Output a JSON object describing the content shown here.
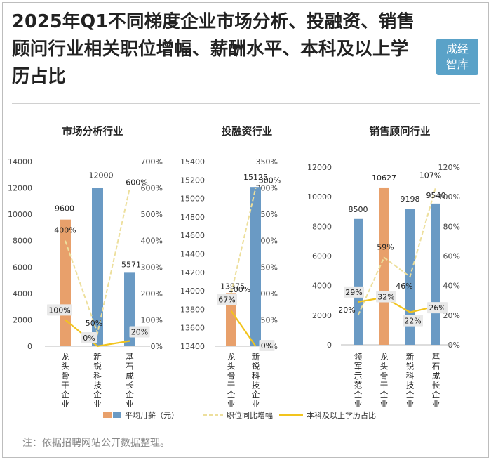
{
  "title": "2025年Q1不同梯度企业市场分析、投融资、销售顾问行业相关职位增幅、薪酬水平、本科及以上学历占比",
  "logo_text": [
    "成经",
    "智库"
  ],
  "note": "注：依据招聘网站公开数据整理。",
  "colors": {
    "bar_orange": "#e8a06b",
    "bar_blue": "#6a9ac4",
    "growth_line": "#eddf9c",
    "degree_line": "#f2c41d"
  },
  "legend": {
    "salary": "平均月薪（元）",
    "growth": "职位同比增幅",
    "degree": "本科及以上学历占比"
  },
  "chart_data": [
    {
      "type": "bar+line",
      "title": "市场分析行业",
      "categories": [
        "龙头骨干企业",
        "新锐科技企业",
        "基石成长企业"
      ],
      "salary": [
        9600,
        12000,
        5571
      ],
      "bar_colors": [
        "orange",
        "blue",
        "blue"
      ],
      "growth_pct": [
        400,
        50,
        600
      ],
      "degree_pct": [
        100,
        0,
        20
      ],
      "left_axis": {
        "min": 0,
        "max": 14000,
        "step": 2000
      },
      "right_axis": {
        "min": 0,
        "max": 700,
        "step": 100
      }
    },
    {
      "type": "bar+line",
      "title": "投融资行业",
      "categories": [
        "龙头骨干企业",
        "新锐科技企业"
      ],
      "salary": [
        13975,
        15125
      ],
      "bar_colors": [
        "orange",
        "blue"
      ],
      "growth_pct": [
        100,
        300
      ],
      "degree_pct": [
        67,
        0
      ],
      "left_axis": {
        "min": 13400,
        "max": 15400,
        "step": 200
      },
      "right_axis": {
        "min": 0,
        "max": 350,
        "step": 50
      }
    },
    {
      "type": "bar+line",
      "title": "销售顾问行业",
      "categories": [
        "领军示范企业",
        "龙头骨干企业",
        "新锐科技企业",
        "基石成长企业"
      ],
      "salary": [
        8500,
        10627,
        9198,
        9540
      ],
      "bar_colors": [
        "blue",
        "orange",
        "blue",
        "blue"
      ],
      "growth_pct": [
        20,
        59,
        46,
        107
      ],
      "degree_pct": [
        29,
        32,
        22,
        26
      ],
      "left_axis": {
        "min": 0,
        "max": 12000,
        "step": 2000
      },
      "right_axis": {
        "min": 0,
        "max": 120,
        "step": 20
      }
    }
  ]
}
